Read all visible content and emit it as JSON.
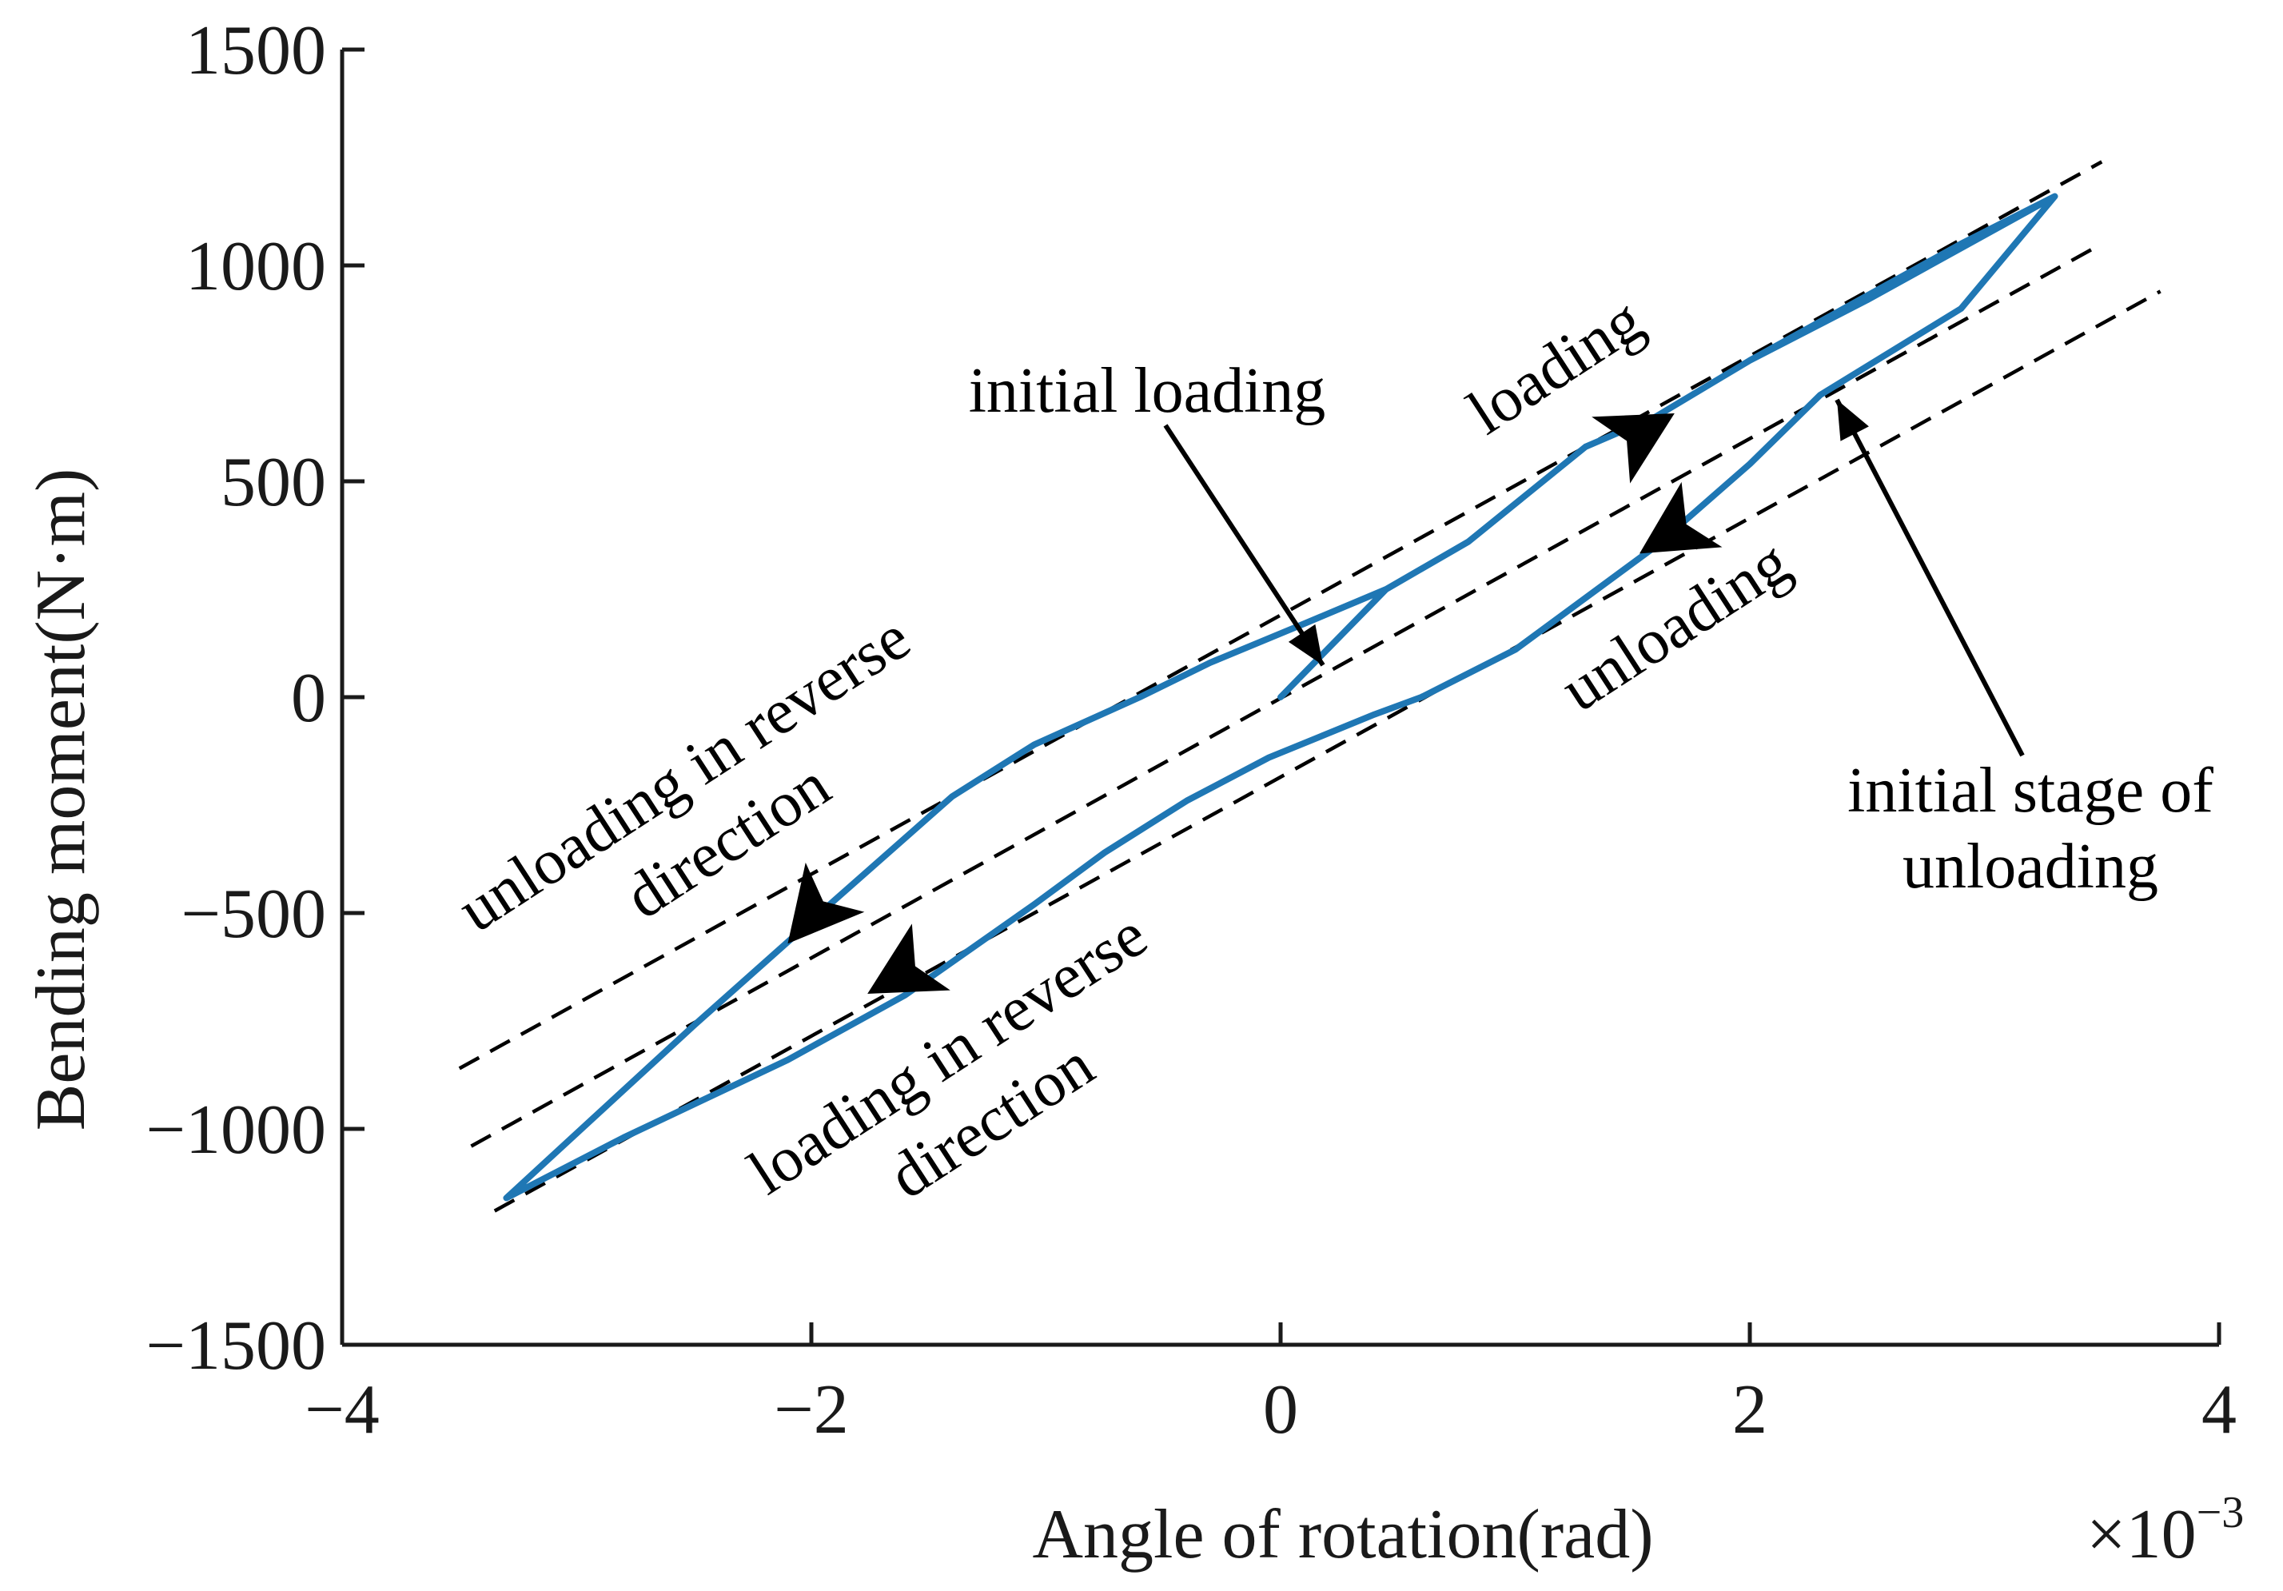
{
  "chart_data": {
    "type": "line",
    "title": "",
    "xlabel": "Angle of rotation(rad)",
    "ylabel": "Bending moment(N·m)",
    "x_scale_note": "×10",
    "x_scale_exponent": "−3",
    "xlim": [
      -4,
      4
    ],
    "ylim": [
      -1500,
      1500
    ],
    "x_ticks": [
      -4,
      -2,
      0,
      2,
      4
    ],
    "x_tick_labels": [
      "−4",
      "−2",
      "0",
      "2",
      "4"
    ],
    "y_ticks": [
      -1500,
      -1000,
      -500,
      0,
      500,
      1000,
      1500
    ],
    "y_tick_labels": [
      "−1500",
      "−1000",
      "−500",
      "0",
      "500",
      "1000",
      "1500"
    ],
    "grid": false,
    "series": [
      {
        "name": "hysteresis loop",
        "color": "#1f77b4",
        "x": [
          0,
          0.45,
          0.8,
          1.05,
          1.3,
          1.6,
          2.0,
          2.4,
          2.9,
          3.3,
          2.9,
          2.3,
          2.0,
          1.6,
          1.35,
          1.0,
          0.6,
          0.4,
          -0.05,
          -0.4,
          -0.75,
          -1.05,
          -1.6,
          -2.1,
          -2.8,
          -3.3,
          -2.5,
          -1.9,
          -1.4,
          -1.05,
          -0.6,
          -0.3,
          0.1,
          0.45,
          0.8,
          1.05,
          1.3,
          1.6,
          2.0,
          2.5,
          3.3
        ],
        "y": [
          0,
          250,
          360,
          470,
          580,
          650,
          780,
          900,
          1050,
          1160,
          900,
          700,
          540,
          350,
          250,
          110,
          0,
          -40,
          -140,
          -240,
          -360,
          -480,
          -690,
          -840,
          -1020,
          -1160,
          -760,
          -470,
          -230,
          -110,
          0,
          80,
          170,
          250,
          360,
          470,
          580,
          650,
          780,
          920,
          1160
        ]
      }
    ],
    "reference_lines": [
      {
        "name": "upper dashed",
        "x": [
          -3.5,
          3.5
        ],
        "y": [
          -860,
          1240
        ]
      },
      {
        "name": "middle dashed",
        "x": [
          -3.45,
          3.5
        ],
        "y": [
          -1040,
          1050
        ]
      },
      {
        "name": "lower dashed",
        "x": [
          -3.35,
          3.75
        ],
        "y": [
          -1190,
          940
        ]
      }
    ],
    "annotations": [
      {
        "key": "initial_loading",
        "lines": [
          "initial loading"
        ]
      },
      {
        "key": "loading",
        "lines": [
          "loading"
        ]
      },
      {
        "key": "unloading",
        "lines": [
          "unloading"
        ]
      },
      {
        "key": "initial_stage",
        "lines": [
          "initial stage of",
          "unloading"
        ]
      },
      {
        "key": "unloading_reverse",
        "lines": [
          "unloading in reverse",
          "direction"
        ]
      },
      {
        "key": "loading_reverse",
        "lines": [
          "loading in reverse",
          "direction"
        ]
      }
    ]
  }
}
